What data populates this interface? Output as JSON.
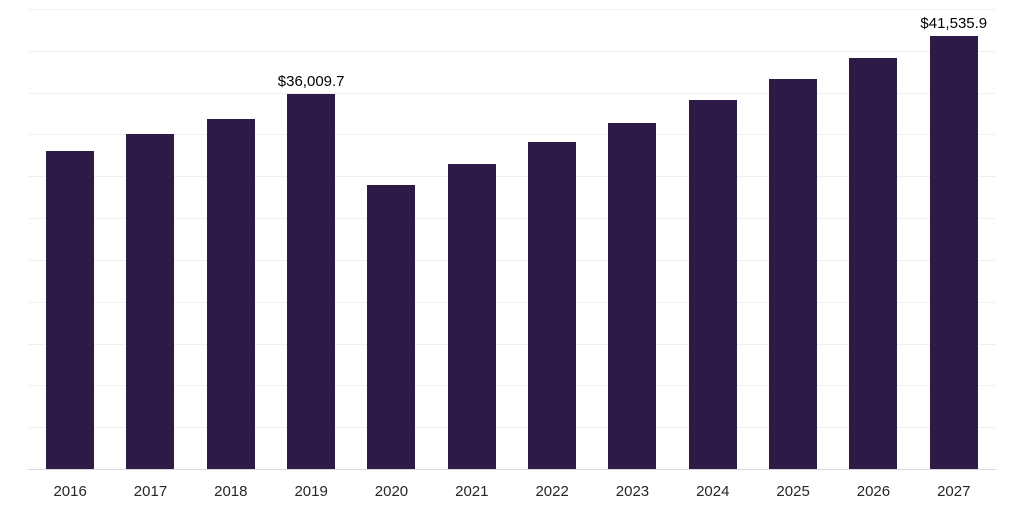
{
  "chart_data": {
    "type": "bar",
    "categories": [
      "2016",
      "2017",
      "2018",
      "2019",
      "2020",
      "2021",
      "2022",
      "2023",
      "2024",
      "2025",
      "2026",
      "2027"
    ],
    "values": [
      30500,
      32100,
      33600,
      36009.7,
      27300,
      29300,
      31400,
      33200,
      35400,
      37400,
      39400,
      41535.9
    ],
    "data_labels": [
      {
        "category": "2019",
        "text": "$36,009.7"
      },
      {
        "category": "2027",
        "text": "$41,535.9"
      }
    ],
    "title": "",
    "xlabel": "",
    "ylabel": "",
    "ylim": [
      0,
      44000
    ],
    "grid": "horizontal",
    "grid_step": 4000,
    "legend": "none",
    "bar_color": "#2e1a47",
    "gridline_color": "#f0f0f0",
    "axis_line_color": "#d9d9d9",
    "background": "#ffffff"
  }
}
